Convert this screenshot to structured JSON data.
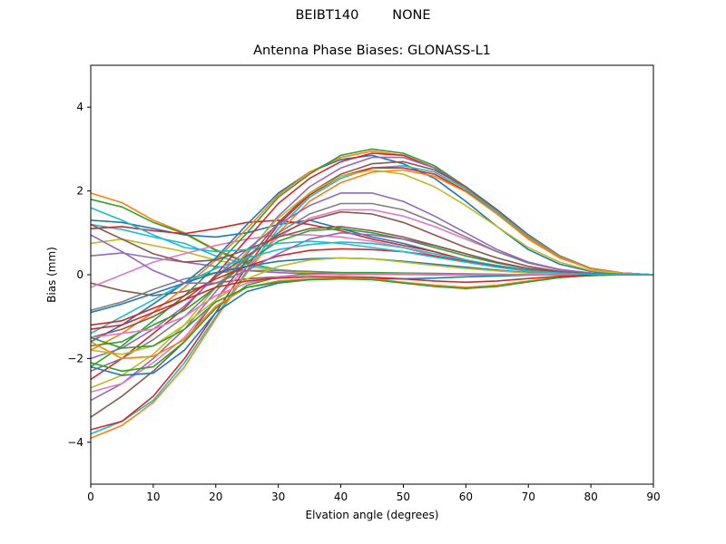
{
  "figure": {
    "suptitle": "BEIBT140        NONE"
  },
  "chart_data": {
    "type": "line",
    "title": "Antenna Phase Biases: GLONASS-L1",
    "xlabel": "Elvation angle (degrees)",
    "ylabel": "Bias (mm)",
    "xlim": [
      0,
      90
    ],
    "ylim": [
      -5,
      5
    ],
    "xticks": [
      0,
      10,
      20,
      30,
      40,
      50,
      60,
      70,
      80,
      90
    ],
    "yticks": [
      -4,
      -2,
      0,
      2,
      4
    ],
    "xtick_labels": [
      "0",
      "10",
      "20",
      "30",
      "40",
      "50",
      "60",
      "70",
      "80",
      "90"
    ],
    "ytick_labels": [
      "−4",
      "−2",
      "0",
      "2",
      "4"
    ],
    "grid": false,
    "legend": "none",
    "x": [
      0,
      5,
      10,
      15,
      20,
      25,
      30,
      35,
      40,
      45,
      50,
      55,
      60,
      65,
      70,
      75,
      80,
      85,
      90
    ],
    "series": [
      {
        "color": "#ff7f0e",
        "values": [
          1.95,
          1.72,
          1.3,
          1.0,
          0.6,
          0.3,
          0.1,
          0.05,
          0.0,
          0.02,
          0.02,
          0.02,
          0.01,
          0.01,
          0.0,
          0.0,
          0.0,
          0.0,
          0.0
        ]
      },
      {
        "color": "#2ca02c",
        "values": [
          1.8,
          1.62,
          1.25,
          0.98,
          0.58,
          0.28,
          0.12,
          0.06,
          0.02,
          0.02,
          0.02,
          0.01,
          0.01,
          0.0,
          0.0,
          0.0,
          0.0,
          0.0,
          0.0
        ]
      },
      {
        "color": "#17becf",
        "values": [
          1.2,
          1.08,
          0.9,
          0.75,
          0.45,
          0.25,
          0.12,
          0.05,
          0.02,
          0.02,
          0.02,
          0.01,
          0.01,
          0.0,
          0.0,
          0.0,
          0.0,
          0.0,
          0.0
        ]
      },
      {
        "color": "#bcbd22",
        "values": [
          0.75,
          0.85,
          0.7,
          0.55,
          0.35,
          0.2,
          0.1,
          0.05,
          0.02,
          0.02,
          0.01,
          0.01,
          0.0,
          0.0,
          0.0,
          0.0,
          0.0,
          0.0,
          0.0
        ]
      },
      {
        "color": "#9467bd",
        "values": [
          0.45,
          0.52,
          0.4,
          0.3,
          0.2,
          0.1,
          0.05,
          0.02,
          0.01,
          0.01,
          0.01,
          0.0,
          0.0,
          0.0,
          0.0,
          0.0,
          0.0,
          0.0,
          0.0
        ]
      },
      {
        "color": "#8c564b",
        "values": [
          -0.2,
          -0.38,
          -0.5,
          -0.4,
          -0.2,
          -0.1,
          -0.05,
          0.0,
          0.01,
          0.01,
          0.01,
          0.0,
          0.0,
          0.0,
          0.0,
          0.0,
          0.0,
          0.0,
          0.0
        ]
      },
      {
        "color": "#7f7f7f",
        "values": [
          -0.85,
          -0.65,
          -0.35,
          -0.1,
          0.05,
          0.1,
          0.1,
          0.08,
          0.05,
          0.03,
          0.02,
          0.01,
          0.0,
          0.0,
          0.0,
          0.0,
          0.0,
          0.0,
          0.0
        ]
      },
      {
        "color": "#1f77b4",
        "values": [
          1.3,
          1.25,
          1.1,
          0.95,
          0.9,
          1.0,
          1.2,
          1.3,
          1.1,
          0.9,
          0.75,
          0.55,
          0.35,
          0.2,
          0.1,
          0.05,
          0.02,
          0.01,
          0.0
        ]
      },
      {
        "color": "#d62728",
        "values": [
          1.1,
          1.15,
          1.05,
          0.98,
          1.1,
          1.25,
          1.3,
          1.2,
          1.05,
          0.85,
          0.7,
          0.55,
          0.35,
          0.2,
          0.1,
          0.05,
          0.02,
          0.01,
          0.0
        ]
      },
      {
        "color": "#e377c2",
        "values": [
          -0.3,
          0.0,
          0.3,
          0.5,
          0.7,
          0.85,
          0.95,
          0.95,
          0.9,
          0.8,
          0.65,
          0.45,
          0.3,
          0.18,
          0.08,
          0.03,
          0.01,
          0.0,
          0.0
        ]
      },
      {
        "color": "#1f77b4",
        "values": [
          -1.6,
          -1.2,
          -0.7,
          -0.2,
          0.4,
          1.2,
          1.95,
          2.45,
          2.75,
          2.85,
          2.65,
          2.3,
          1.75,
          1.15,
          0.6,
          0.25,
          0.08,
          0.02,
          0.0
        ]
      },
      {
        "color": "#ff7f0e",
        "values": [
          -1.8,
          -1.4,
          -0.9,
          -0.3,
          0.35,
          1.1,
          1.9,
          2.45,
          2.8,
          2.95,
          2.85,
          2.55,
          2.05,
          1.45,
          0.85,
          0.4,
          0.15,
          0.04,
          0.0
        ]
      },
      {
        "color": "#2ca02c",
        "values": [
          -2.2,
          -1.7,
          -1.1,
          -0.5,
          0.2,
          1.0,
          1.85,
          2.4,
          2.85,
          3.0,
          2.9,
          2.6,
          2.1,
          1.5,
          0.9,
          0.45,
          0.15,
          0.04,
          0.0
        ]
      },
      {
        "color": "#d62728",
        "values": [
          -2.5,
          -2.0,
          -1.4,
          -0.8,
          0.0,
          0.85,
          1.7,
          2.3,
          2.7,
          2.9,
          2.85,
          2.55,
          2.1,
          1.55,
          0.95,
          0.45,
          0.15,
          0.04,
          0.0
        ]
      },
      {
        "color": "#9467bd",
        "values": [
          -3.0,
          -2.6,
          -2.0,
          -1.3,
          -0.4,
          0.5,
          1.4,
          2.1,
          2.55,
          2.8,
          2.8,
          2.55,
          2.1,
          1.55,
          0.95,
          0.45,
          0.15,
          0.04,
          0.0
        ]
      },
      {
        "color": "#8c564b",
        "values": [
          -3.4,
          -2.9,
          -2.3,
          -1.6,
          -0.6,
          0.35,
          1.25,
          1.95,
          2.4,
          2.65,
          2.7,
          2.5,
          2.1,
          1.55,
          0.95,
          0.45,
          0.15,
          0.04,
          0.0
        ]
      },
      {
        "color": "#17becf",
        "values": [
          -3.8,
          -3.5,
          -3.0,
          -2.1,
          -1.0,
          0.1,
          1.1,
          1.85,
          2.3,
          2.55,
          2.6,
          2.45,
          2.05,
          1.5,
          0.92,
          0.44,
          0.15,
          0.04,
          0.0
        ]
      },
      {
        "color": "#d62728",
        "values": [
          -3.7,
          -3.5,
          -2.9,
          -2.0,
          -0.9,
          0.2,
          1.2,
          1.9,
          2.35,
          2.55,
          2.55,
          2.4,
          2.0,
          1.45,
          0.88,
          0.42,
          0.14,
          0.04,
          0.0
        ]
      },
      {
        "color": "#ff7f0e",
        "values": [
          -3.9,
          -3.6,
          -3.05,
          -2.2,
          -1.05,
          0.05,
          1.0,
          1.75,
          2.2,
          2.45,
          2.5,
          2.35,
          1.98,
          1.45,
          0.88,
          0.42,
          0.14,
          0.04,
          0.0
        ]
      },
      {
        "color": "#bcbd22",
        "values": [
          -2.7,
          -2.4,
          -1.9,
          -1.2,
          -0.3,
          0.55,
          1.35,
          1.95,
          2.35,
          2.5,
          2.4,
          2.1,
          1.65,
          1.15,
          0.65,
          0.3,
          0.1,
          0.03,
          0.0
        ]
      },
      {
        "color": "#e377c2",
        "values": [
          -2.8,
          -2.6,
          -2.1,
          -1.5,
          -0.6,
          0.2,
          0.9,
          1.35,
          1.55,
          1.55,
          1.4,
          1.15,
          0.85,
          0.55,
          0.3,
          0.13,
          0.04,
          0.01,
          0.0
        ]
      },
      {
        "color": "#7f7f7f",
        "values": [
          -2.3,
          -2.0,
          -1.55,
          -1.0,
          -0.3,
          0.4,
          1.0,
          1.45,
          1.7,
          1.7,
          1.55,
          1.25,
          0.9,
          0.55,
          0.28,
          0.12,
          0.04,
          0.01,
          0.0
        ]
      },
      {
        "color": "#9467bd",
        "values": [
          -2.0,
          -1.75,
          -1.3,
          -0.75,
          -0.05,
          0.6,
          1.2,
          1.65,
          1.95,
          1.95,
          1.75,
          1.4,
          1.0,
          0.6,
          0.3,
          0.12,
          0.04,
          0.01,
          0.0
        ]
      },
      {
        "color": "#8c564b",
        "values": [
          -1.5,
          -1.3,
          -1.0,
          -0.6,
          -0.05,
          0.45,
          0.95,
          1.3,
          1.5,
          1.45,
          1.25,
          0.95,
          0.65,
          0.4,
          0.2,
          0.08,
          0.02,
          0.01,
          0.0
        ]
      },
      {
        "color": "#2ca02c",
        "values": [
          -1.7,
          -1.6,
          -1.2,
          -0.85,
          -0.3,
          0.3,
          0.8,
          1.05,
          1.1,
          1.0,
          0.85,
          0.65,
          0.45,
          0.28,
          0.14,
          0.06,
          0.02,
          0.0,
          0.0
        ]
      },
      {
        "color": "#17becf",
        "values": [
          -1.4,
          -1.0,
          -0.6,
          -0.2,
          0.15,
          0.4,
          0.6,
          0.72,
          0.78,
          0.75,
          0.65,
          0.5,
          0.35,
          0.22,
          0.11,
          0.05,
          0.01,
          0.0,
          0.0
        ]
      },
      {
        "color": "#d62728",
        "values": [
          -1.2,
          -1.1,
          -0.8,
          -0.5,
          -0.1,
          0.2,
          0.45,
          0.58,
          0.62,
          0.6,
          0.55,
          0.45,
          0.32,
          0.2,
          0.1,
          0.04,
          0.01,
          0.0,
          0.0
        ]
      },
      {
        "color": "#1f77b4",
        "values": [
          -0.9,
          -0.7,
          -0.45,
          -0.2,
          0.05,
          0.2,
          0.32,
          0.38,
          0.4,
          0.38,
          0.32,
          0.25,
          0.18,
          0.11,
          0.05,
          0.02,
          0.01,
          0.0,
          0.0
        ]
      },
      {
        "color": "#bcbd22",
        "values": [
          -1.8,
          -1.9,
          -1.7,
          -1.2,
          -0.6,
          -0.1,
          0.2,
          0.35,
          0.4,
          0.38,
          0.3,
          0.22,
          0.15,
          0.09,
          0.04,
          0.02,
          0.0,
          0.0,
          0.0
        ]
      },
      {
        "color": "#2ca02c",
        "values": [
          -2.1,
          -2.3,
          -2.2,
          -1.6,
          -0.8,
          -0.25,
          -0.05,
          0.02,
          0.05,
          0.05,
          0.04,
          0.03,
          0.02,
          0.01,
          0.0,
          0.0,
          0.0,
          0.0,
          0.0
        ]
      },
      {
        "color": "#1f77b4",
        "values": [
          -2.2,
          -2.4,
          -2.35,
          -1.8,
          -0.9,
          -0.4,
          -0.2,
          -0.12,
          -0.1,
          -0.1,
          -0.1,
          -0.08,
          -0.05,
          -0.03,
          -0.01,
          0.0,
          0.0,
          0.0,
          0.0
        ]
      },
      {
        "color": "#e377c2",
        "values": [
          -1.5,
          -1.4,
          -1.3,
          -1.0,
          -0.5,
          -0.2,
          -0.05,
          0.0,
          0.02,
          0.02,
          0.02,
          0.01,
          0.0,
          0.0,
          0.0,
          0.0,
          0.0,
          0.0,
          0.0
        ]
      },
      {
        "color": "#ff7f0e",
        "values": [
          -1.6,
          -2.0,
          -1.95,
          -1.55,
          -0.75,
          -0.3,
          -0.15,
          -0.1,
          -0.08,
          -0.1,
          -0.18,
          -0.25,
          -0.3,
          -0.25,
          -0.15,
          -0.06,
          -0.02,
          0.0,
          0.0
        ]
      },
      {
        "color": "#2ca02c",
        "values": [
          -1.5,
          -1.75,
          -1.7,
          -1.3,
          -0.65,
          -0.3,
          -0.18,
          -0.12,
          -0.1,
          -0.12,
          -0.2,
          -0.28,
          -0.33,
          -0.28,
          -0.17,
          -0.07,
          -0.02,
          0.0,
          0.0
        ]
      },
      {
        "color": "#d62728",
        "values": [
          -1.3,
          -1.2,
          -0.9,
          -0.6,
          -0.3,
          -0.15,
          -0.08,
          -0.05,
          -0.05,
          -0.06,
          -0.1,
          -0.15,
          -0.18,
          -0.15,
          -0.09,
          -0.04,
          -0.01,
          0.0,
          0.0
        ]
      },
      {
        "color": "#9467bd",
        "values": [
          0.95,
          0.55,
          0.1,
          -0.2,
          -0.2,
          0.1,
          0.5,
          0.85,
          1.0,
          0.95,
          0.85,
          0.7,
          0.5,
          0.3,
          0.15,
          0.06,
          0.02,
          0.0,
          0.0
        ]
      },
      {
        "color": "#8c564b",
        "values": [
          1.2,
          0.85,
          0.5,
          0.3,
          0.35,
          0.6,
          0.9,
          1.1,
          1.15,
          1.05,
          0.9,
          0.7,
          0.5,
          0.3,
          0.15,
          0.06,
          0.02,
          0.0,
          0.0
        ]
      },
      {
        "color": "#17becf",
        "values": [
          1.6,
          1.3,
          0.95,
          0.65,
          0.55,
          0.6,
          0.75,
          0.8,
          0.75,
          0.65,
          0.55,
          0.42,
          0.3,
          0.18,
          0.09,
          0.04,
          0.01,
          0.0,
          0.0
        ]
      }
    ]
  }
}
